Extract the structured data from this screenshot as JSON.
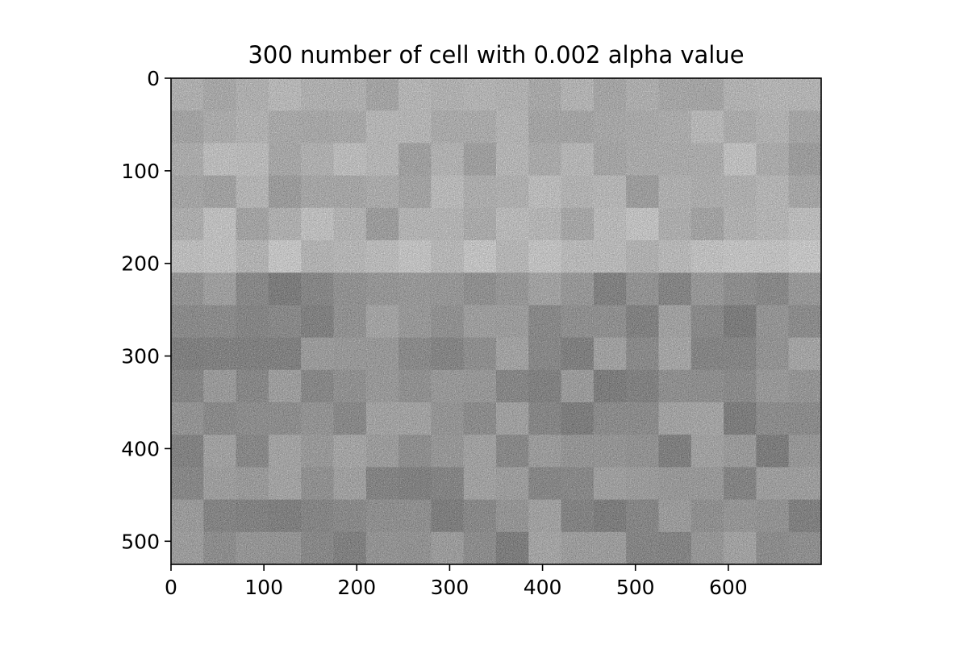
{
  "chart_data": {
    "type": "heatmap",
    "title": "300 number of cell with 0.002 alpha value",
    "xlabel": "",
    "ylabel": "",
    "x_ticks": [
      "0",
      "100",
      "200",
      "300",
      "400",
      "500",
      "600"
    ],
    "y_ticks": [
      "0",
      "100",
      "200",
      "300",
      "400",
      "500"
    ],
    "xlim": [
      0,
      700
    ],
    "ylim": [
      525,
      0
    ],
    "image_size": {
      "width": 700,
      "height": 525
    },
    "colormap": "gray",
    "grid": false,
    "legend": "none",
    "content": "grayscale noisy city-skyline image composed of rectangular cells; bright sky band roughly rows 150-210, darker buildings below"
  },
  "colors": {
    "axis": "#000000",
    "background": "#ffffff"
  }
}
